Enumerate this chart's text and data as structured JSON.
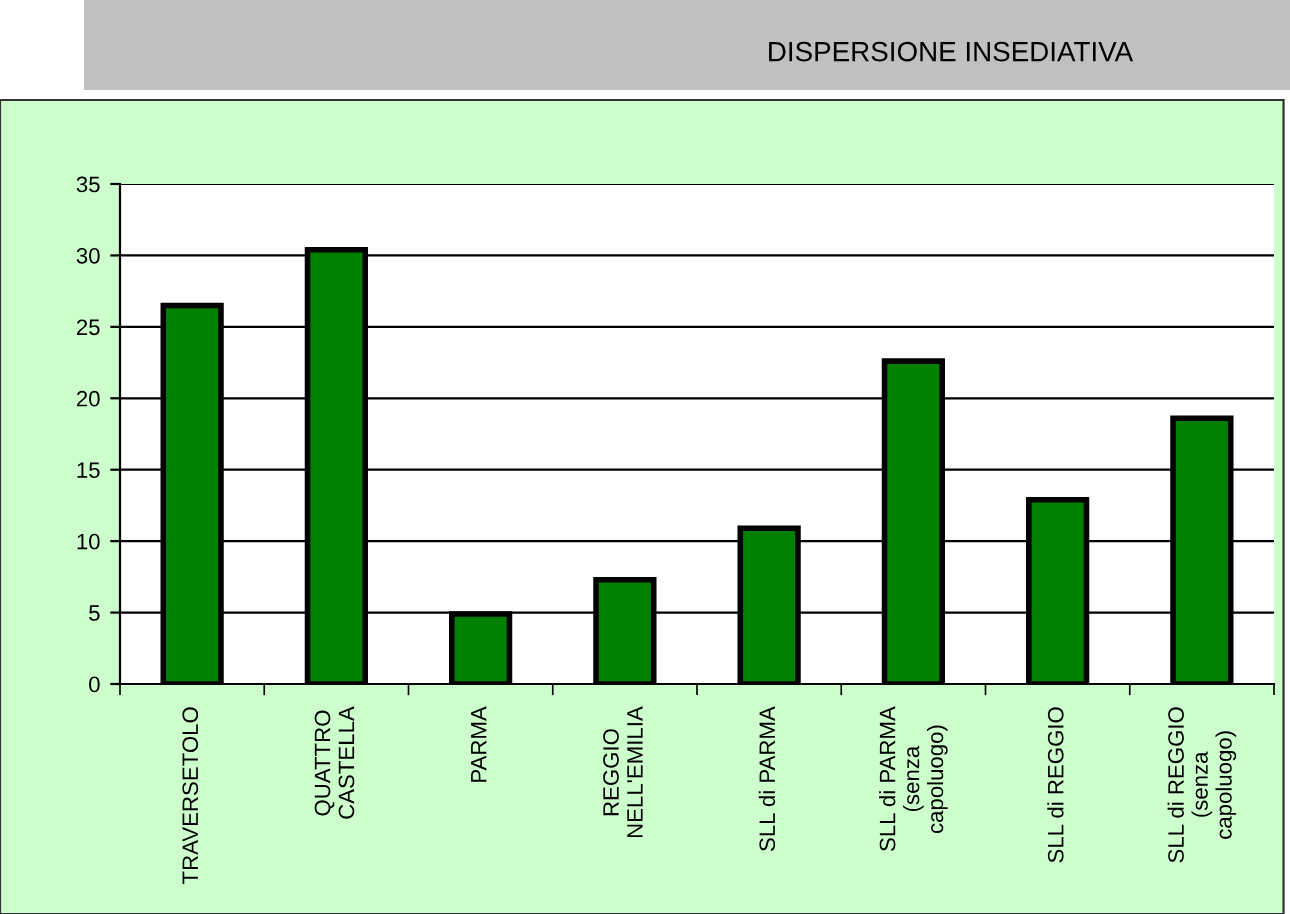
{
  "chart_data": {
    "type": "bar",
    "title": "DISPERSIONE INSEDIATIVA",
    "categories": [
      "TRAVERSETOLO",
      "QUATTRO\nCASTELLA",
      "PARMA",
      "REGGIO\nNELL'EMILIA",
      "SLL di PARMA",
      "SLL di PARMA\n(senza\ncapoluogo)",
      "SLL di REGGIO",
      "SLL di REGGIO\n(senza\ncapoluogo)"
    ],
    "values": [
      26.5,
      30.4,
      4.9,
      7.3,
      10.9,
      22.6,
      12.9,
      18.6
    ],
    "color": "#007f00",
    "ylim": [
      0,
      35
    ],
    "yticks": [
      0,
      5,
      10,
      15,
      20,
      25,
      30,
      35
    ],
    "grid": "y"
  }
}
